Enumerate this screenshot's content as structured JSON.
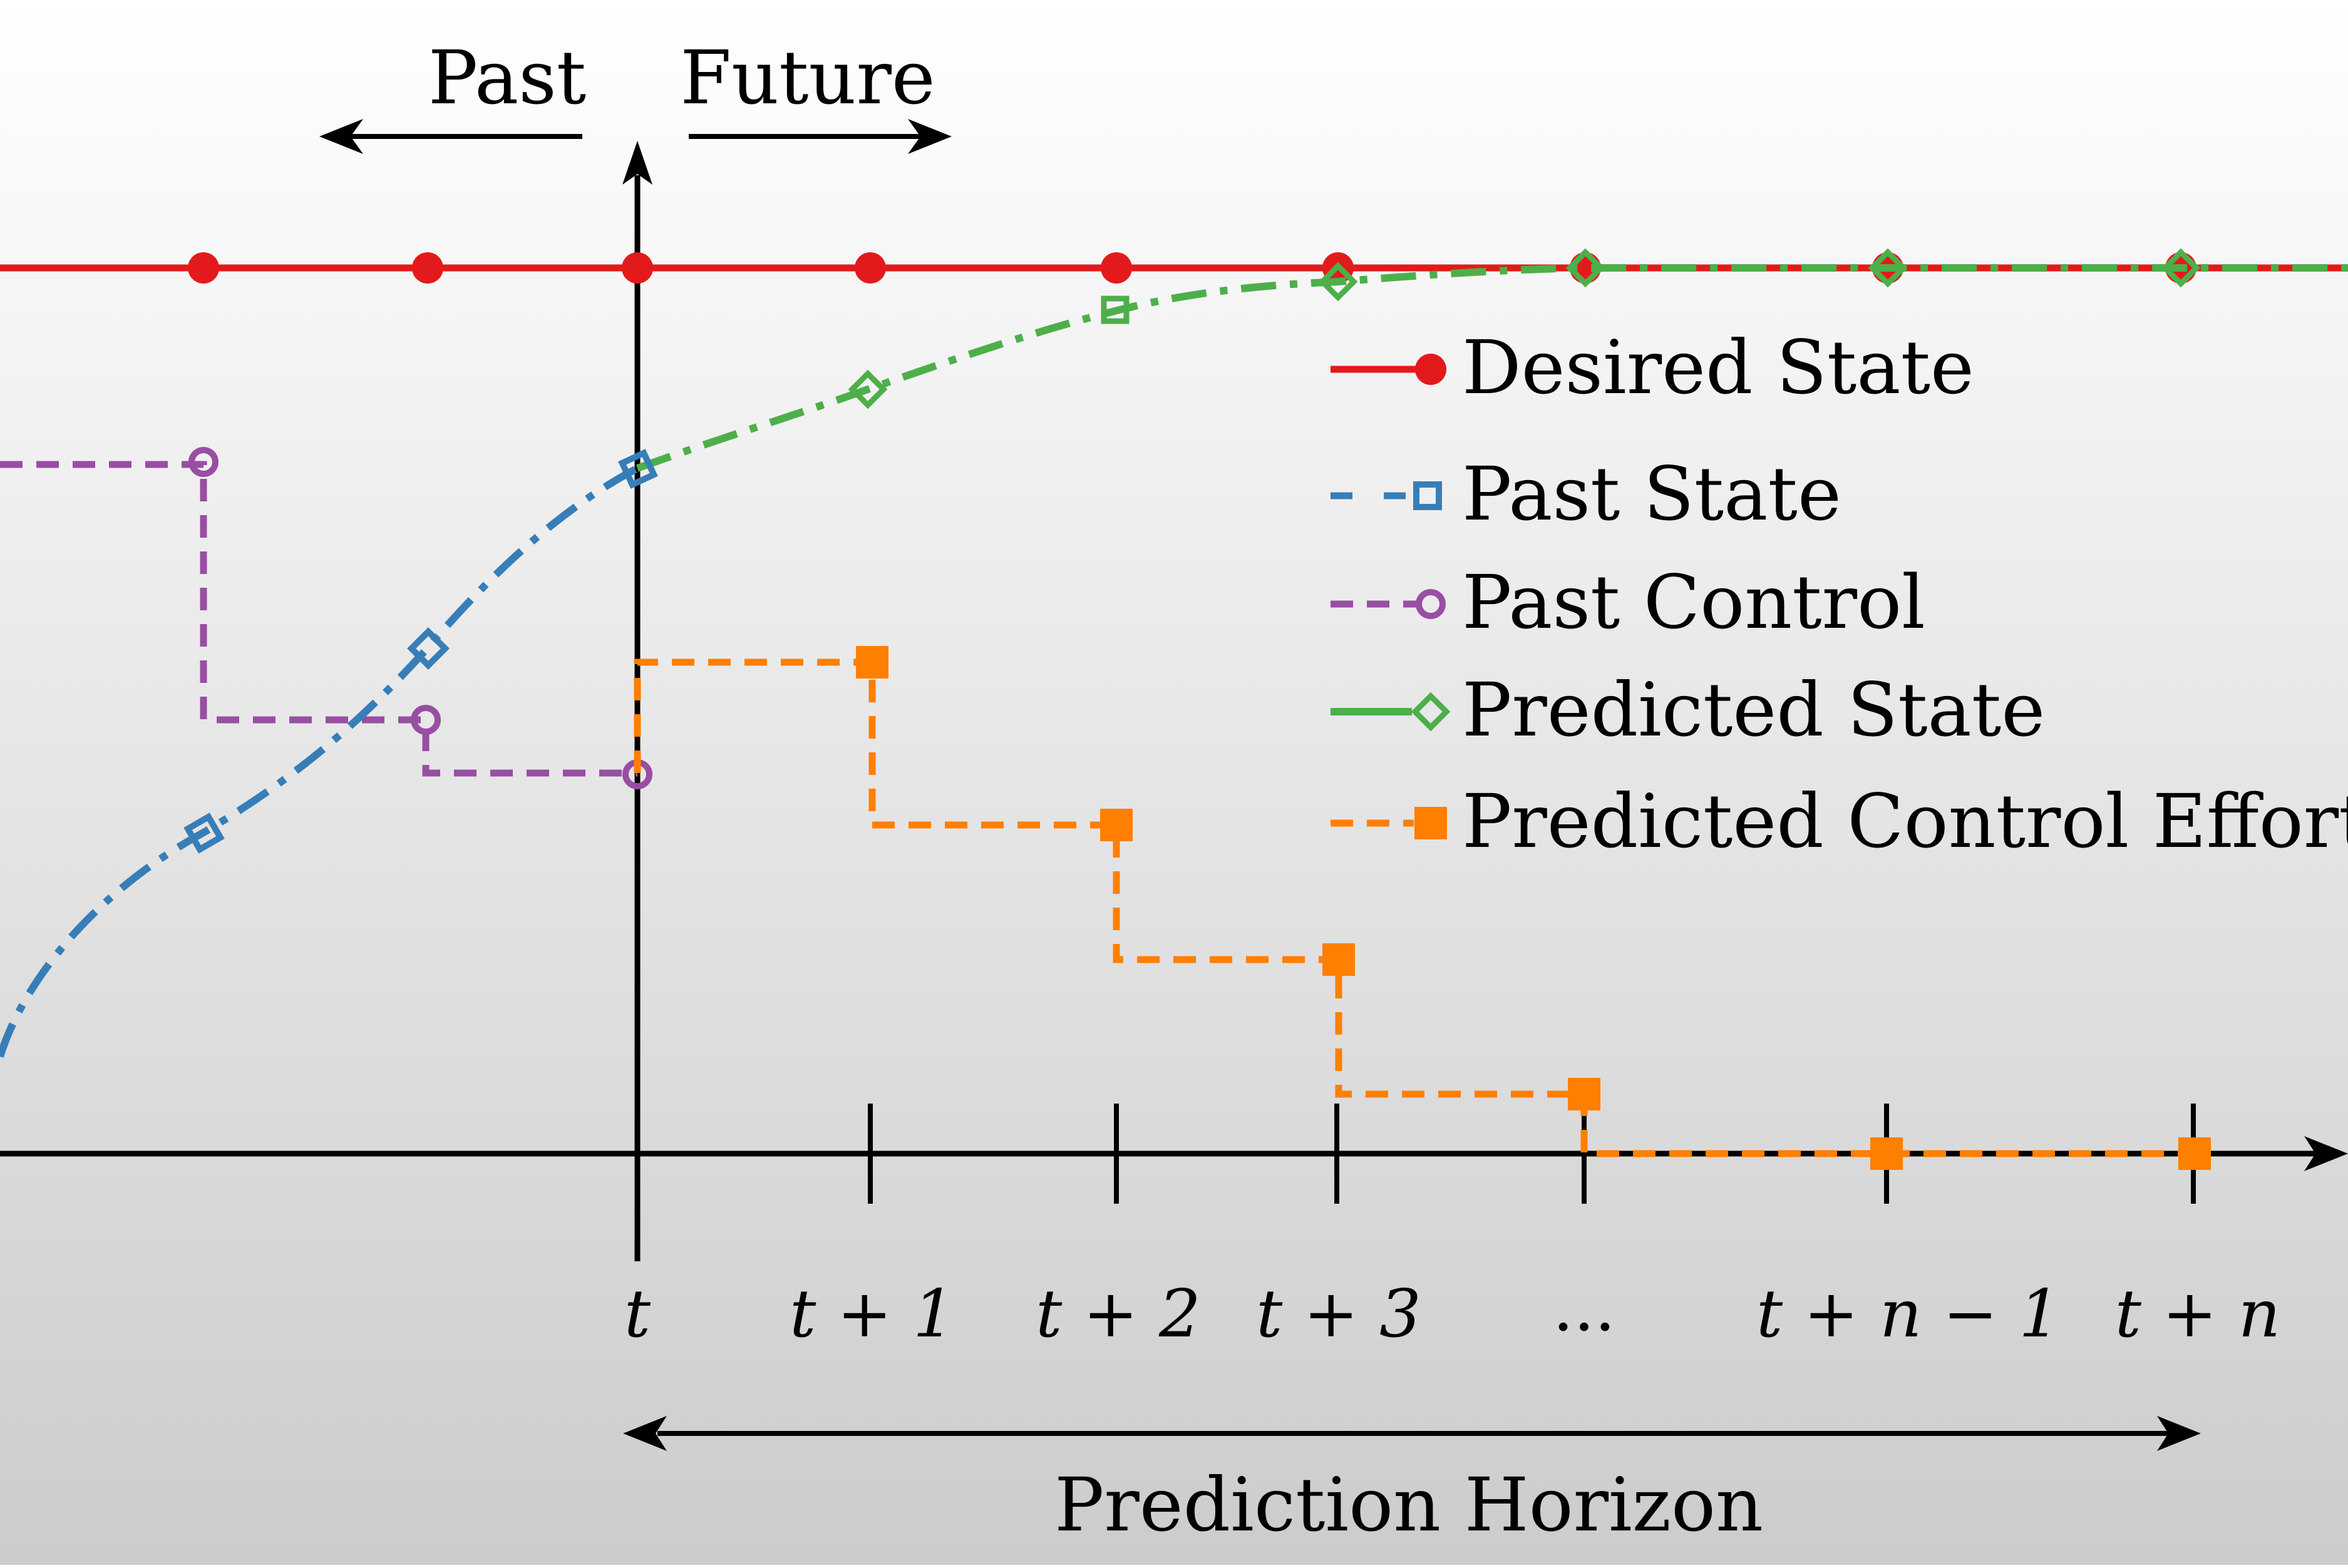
{
  "header": {
    "past_label": "Past",
    "future_label": "Future"
  },
  "horizon": {
    "label": "Prediction Horizon"
  },
  "ticks": [
    {
      "label": "t"
    },
    {
      "label": "t + 1"
    },
    {
      "label": "t + 2"
    },
    {
      "label": "t + 3"
    },
    {
      "label": "..."
    },
    {
      "label": "t + n − 1"
    },
    {
      "label": "t + n"
    }
  ],
  "legend": {
    "items": [
      {
        "label": "Desired State",
        "color": "#e31a1c",
        "marker": "filled-circle",
        "line": "solid"
      },
      {
        "label": "Past State",
        "color": "#377eb8",
        "marker": "open-square",
        "line": "dash-dot"
      },
      {
        "label": "Past Control",
        "color": "#984ea3",
        "marker": "open-circle",
        "line": "dashed"
      },
      {
        "label": "Predicted State",
        "color": "#4daf4a",
        "marker": "open-diamond",
        "line": "dash-dot"
      },
      {
        "label": "Predicted Control Effort",
        "color": "#ff7f00",
        "marker": "filled-square",
        "line": "dashed"
      }
    ]
  },
  "colors": {
    "background_top": "#ffffff",
    "background_bottom": "#cccccc",
    "axis": "#000000"
  }
}
